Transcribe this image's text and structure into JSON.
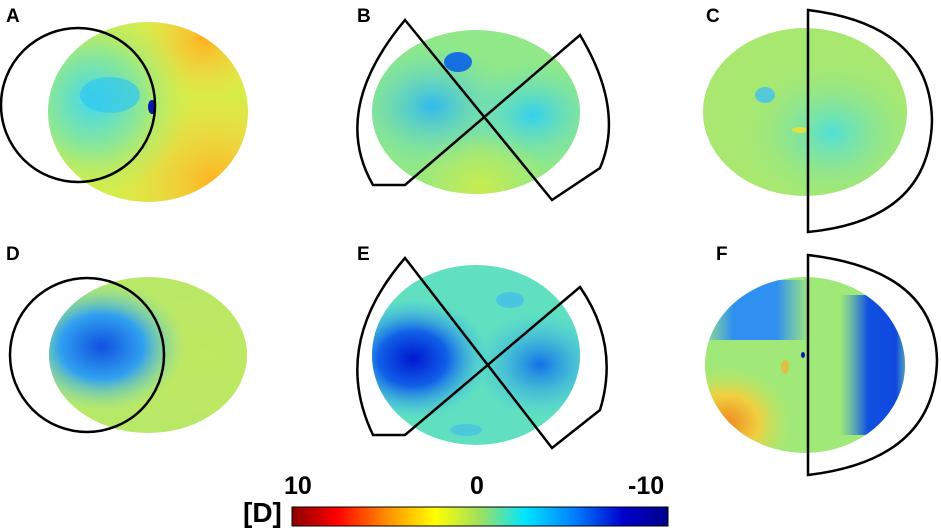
{
  "panels": [
    {
      "letter": "A"
    },
    {
      "letter": "B"
    },
    {
      "letter": "C"
    },
    {
      "letter": "D"
    },
    {
      "letter": "E"
    },
    {
      "letter": "F"
    }
  ],
  "colorbar": {
    "unit_label": "[D]",
    "tick_max": "10",
    "tick_mid": "0",
    "tick_min": "-10",
    "colors": [
      "#8b0000",
      "#ff0000",
      "#ff8c00",
      "#ffff00",
      "#a0e060",
      "#00e5ff",
      "#0080ff",
      "#0000cd",
      "#00008b"
    ]
  }
}
